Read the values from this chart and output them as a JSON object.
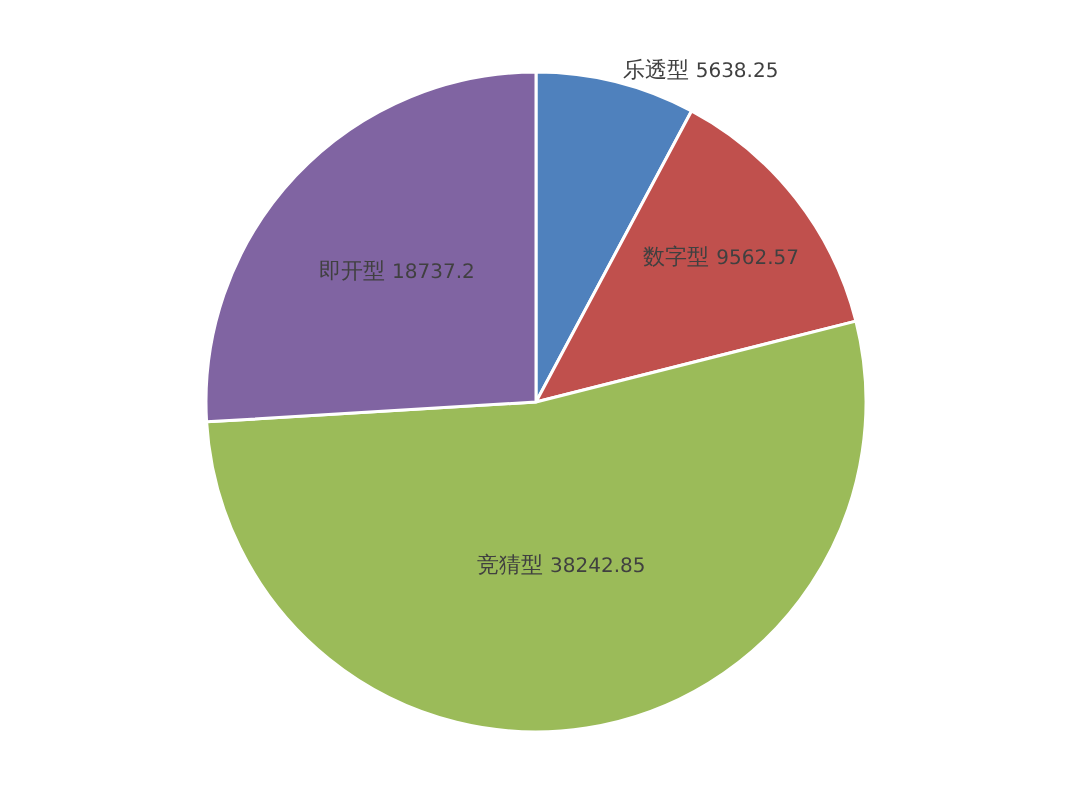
{
  "chart_data": {
    "type": "pie",
    "categories": [
      "乐透型",
      "数字型",
      "竞猜型",
      "即开型"
    ],
    "values": [
      5638.25,
      9562.57,
      38242.85,
      18737.2
    ],
    "colors": [
      "#4f81bd",
      "#c0504d",
      "#9bbb59",
      "#8064a2"
    ],
    "data_labels": true,
    "legend": false
  }
}
